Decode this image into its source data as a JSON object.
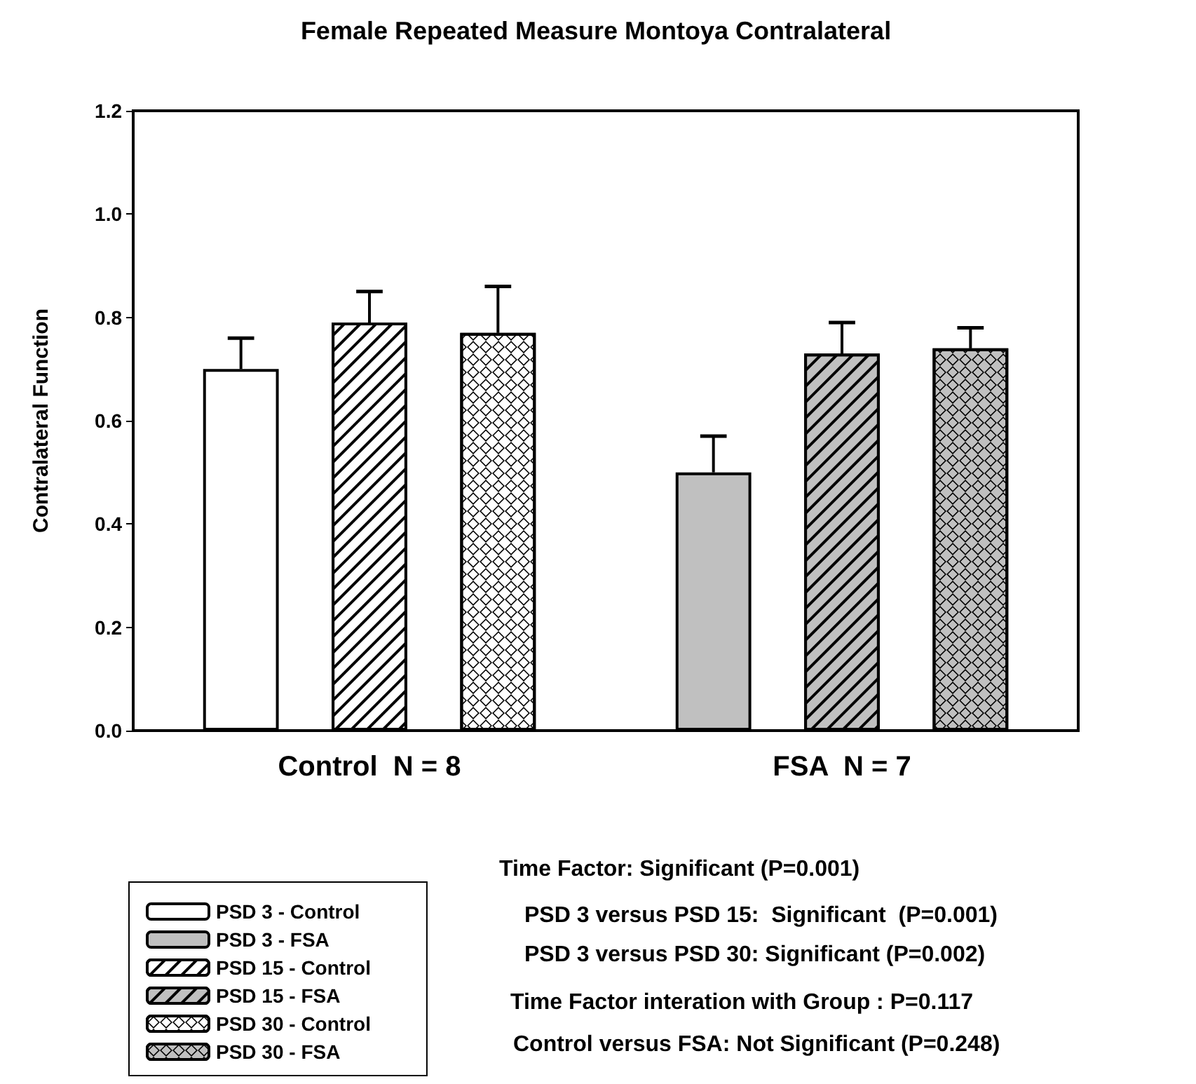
{
  "chart_data": {
    "type": "bar",
    "title": "Female Repeated Measure Montoya Contralateral",
    "ylabel": "Contralateral Function",
    "categories": [
      "Control  N = 8",
      "FSA  N = 7"
    ],
    "series": [
      {
        "name": "PSD 3 - Control",
        "color": "#ffffff",
        "values": [
          0.7,
          null
        ],
        "errors": [
          [
            0.7,
            0.76
          ],
          null
        ]
      },
      {
        "name": "PSD 3 - FSA",
        "color": "#c0c0c0",
        "values": [
          null,
          0.5
        ],
        "errors": [
          null,
          [
            0.5,
            0.57
          ]
        ]
      },
      {
        "name": "PSD 15 - Control",
        "color": "#ffffff",
        "values": [
          0.79,
          null
        ],
        "errors": [
          [
            0.79,
            0.85
          ],
          null
        ]
      },
      {
        "name": "PSD 15 - FSA",
        "color": "#c0c0c0",
        "values": [
          null,
          0.73
        ],
        "errors": [
          null,
          [
            0.73,
            0.79
          ]
        ]
      },
      {
        "name": "PSD 30 - Control",
        "color": "#ffffff",
        "values": [
          0.77,
          null
        ],
        "errors": [
          [
            0.77,
            0.86
          ],
          null
        ]
      },
      {
        "name": "PSD 30 - FSA",
        "color": "#c0c0c0",
        "values": [
          null,
          0.74
        ],
        "errors": [
          null,
          [
            0.74,
            0.78
          ]
        ]
      }
    ],
    "ylim": [
      0,
      1.2
    ],
    "yticks": [
      {
        "value": 0,
        "label": "0.0"
      },
      {
        "value": 0.2,
        "label": "0.2"
      },
      {
        "value": 0.4,
        "label": "0.4"
      },
      {
        "value": 0.6,
        "label": "0.6"
      },
      {
        "value": 0.8,
        "label": "0.8"
      },
      {
        "value": 1.0,
        "label": "1.0"
      },
      {
        "value": 1.2,
        "label": "1.2"
      }
    ],
    "legend": "bottom left",
    "annotations": [
      "Time Factor: Significant (P=0.001)",
      "PSD 3 versus PSD 15:  Significant  (P=0.001)",
      "PSD 3 versus PSD 30: Significant (P=0.002)",
      "Time Factor interation with Group : P=0.117",
      "Control versus FSA: Not Significant (P=0.248)"
    ]
  }
}
